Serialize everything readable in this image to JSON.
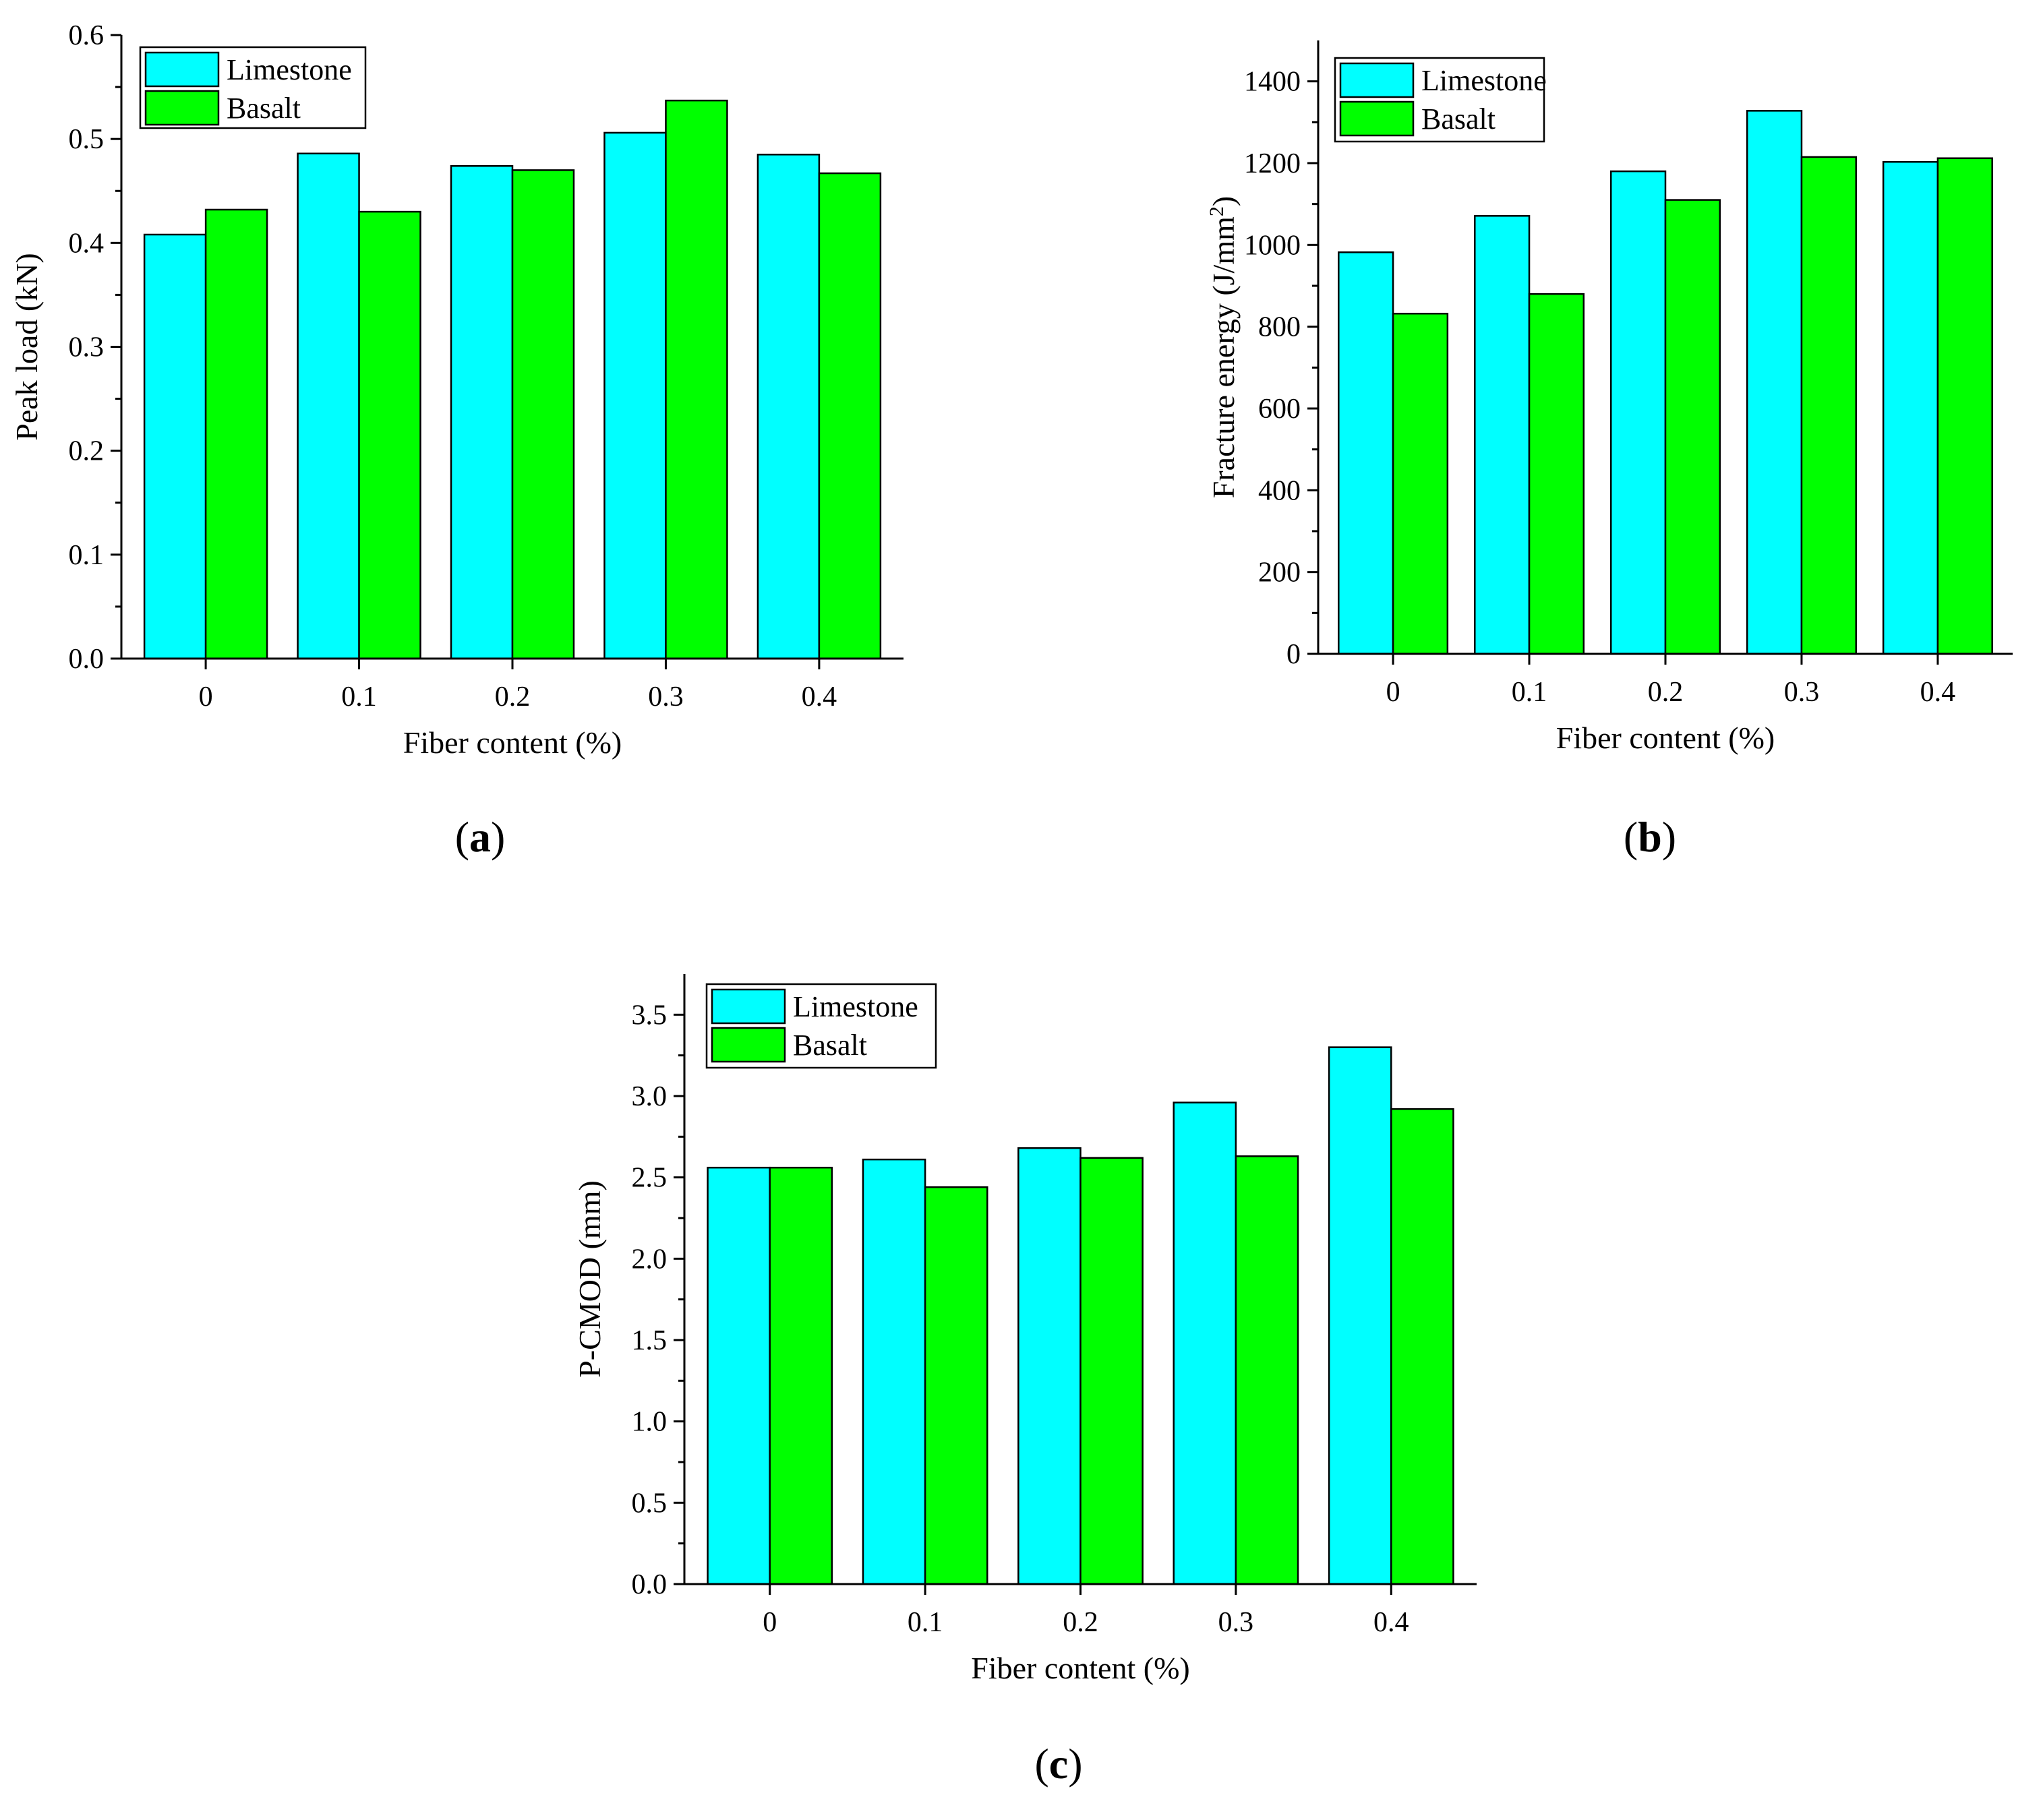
{
  "colors": {
    "limestone": "#00FFFF",
    "basalt": "#00FF00",
    "axis": "#000000"
  },
  "panel_labels": [
    "a",
    "b",
    "c"
  ],
  "chart_data": [
    {
      "type": "bar",
      "panel": "a",
      "categories": [
        "0",
        "0.1",
        "0.2",
        "0.3",
        "0.4"
      ],
      "series": [
        {
          "name": "Limestone",
          "values": [
            0.408,
            0.486,
            0.474,
            0.506,
            0.485
          ]
        },
        {
          "name": "Basalt",
          "values": [
            0.432,
            0.43,
            0.47,
            0.537,
            0.467
          ]
        }
      ],
      "xlabel": "Fiber content (%)",
      "ylabel": "Peak load (kN)",
      "ylim": [
        0,
        0.6
      ],
      "yticks": [
        "0.0",
        "0.1",
        "0.2",
        "0.3",
        "0.4",
        "0.5",
        "0.6"
      ],
      "legend": "top-left"
    },
    {
      "type": "bar",
      "panel": "b",
      "categories": [
        "0",
        "0.1",
        "0.2",
        "0.3",
        "0.4"
      ],
      "series": [
        {
          "name": "Limestone",
          "values": [
            982,
            1071,
            1180,
            1328,
            1203
          ]
        },
        {
          "name": "Basalt",
          "values": [
            832,
            880,
            1110,
            1215,
            1212
          ]
        }
      ],
      "xlabel": "Fiber content (%)",
      "ylabel": "Fracture energy (J/mm",
      "ylabel_sup": "2",
      "ylabel_end": ")",
      "ylim": [
        0,
        1500
      ],
      "yticks": [
        "0",
        "200",
        "400",
        "600",
        "800",
        "1000",
        "1200",
        "1400"
      ],
      "legend": "top-left"
    },
    {
      "type": "bar",
      "panel": "c",
      "categories": [
        "0",
        "0.1",
        "0.2",
        "0.3",
        "0.4"
      ],
      "series": [
        {
          "name": "Limestone",
          "values": [
            2.56,
            2.61,
            2.68,
            2.96,
            3.3
          ]
        },
        {
          "name": "Basalt",
          "values": [
            2.56,
            2.44,
            2.62,
            2.63,
            2.92
          ]
        }
      ],
      "xlabel": "Fiber content (%)",
      "ylabel": "P-CMOD (mm)",
      "ylim": [
        0,
        3.75
      ],
      "yticks": [
        "0.0",
        "0.5",
        "1.0",
        "1.5",
        "2.0",
        "2.5",
        "3.0",
        "3.5"
      ],
      "legend": "top-left"
    }
  ]
}
